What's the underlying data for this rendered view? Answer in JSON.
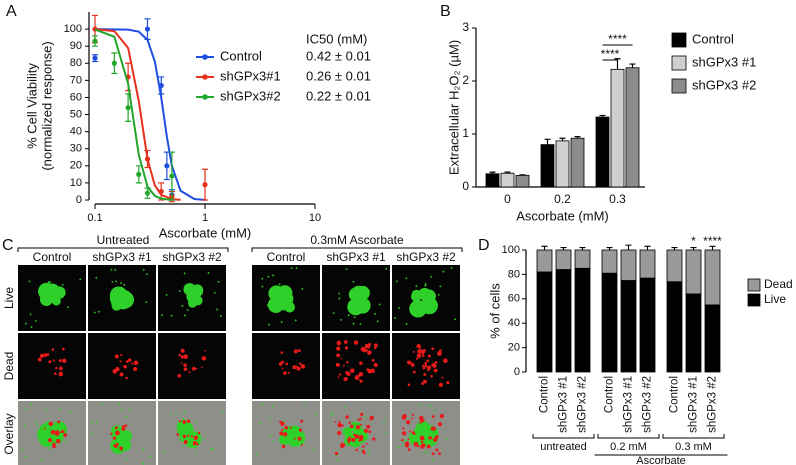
{
  "panel_labels": [
    "A",
    "B",
    "C",
    "D"
  ],
  "chart_data": [
    {
      "type": "scatter",
      "ylabel": [
        "% Cell Viability",
        "(normalized response)"
      ],
      "xlabel": "Ascorbate (mM)",
      "xscale": "log",
      "xlim": [
        0.1,
        10
      ],
      "xticks": [
        0.1,
        1,
        10
      ],
      "ylim": [
        0,
        110
      ],
      "yticks": [
        0,
        10,
        20,
        30,
        40,
        50,
        60,
        70,
        80,
        90,
        100
      ],
      "legend_title": "IC50 (mM)",
      "series": [
        {
          "name": "Control",
          "color": "#1f4fe0",
          "ic50": "0.42 ± 0.01",
          "x": [
            0.1,
            0.3,
            0.4,
            0.45,
            0.5
          ],
          "values": [
            83,
            100,
            67,
            20,
            3
          ],
          "errors": [
            2,
            6,
            5,
            8,
            3
          ],
          "fit": {
            "x": [
              0.1,
              0.2,
              0.25,
              0.3,
              0.35,
              0.4,
              0.45,
              0.5,
              0.6,
              0.8,
              1
            ],
            "values": [
              100,
              99.7,
              98.5,
              93.7,
              81,
              60,
              37,
              20,
              5.4,
              0.6,
              0.1
            ]
          }
        },
        {
          "name": "shGPx3#1",
          "color": "#e8301e",
          "ic50": "0.26 ± 0.01",
          "x": [
            0.1,
            0.2,
            0.3,
            0.4,
            0.5,
            1.0
          ],
          "values": [
            100,
            72,
            24,
            5,
            2,
            9
          ],
          "errors": [
            8,
            8,
            5,
            5,
            3,
            9
          ],
          "fit": {
            "x": [
              0.1,
              0.15,
              0.2,
              0.25,
              0.3,
              0.35,
              0.4,
              0.5,
              0.6
            ],
            "values": [
              100,
              98.8,
              89,
              58,
              24,
              8.5,
              3,
              0.5,
              0.1
            ]
          }
        },
        {
          "name": "shGPx3#2",
          "color": "#21a52b",
          "ic50": "0.22 ± 0.01",
          "x": [
            0.1,
            0.15,
            0.2,
            0.25,
            0.3,
            0.5
          ],
          "values": [
            93,
            80,
            54,
            15,
            4,
            14
          ],
          "errors": [
            3,
            6,
            8,
            5,
            3,
            14
          ],
          "fit": {
            "x": [
              0.1,
              0.15,
              0.2,
              0.25,
              0.3,
              0.35,
              0.4,
              0.5
            ],
            "values": [
              99.8,
              95.5,
              68,
              26.5,
              7.8,
              2.4,
              0.8,
              0.1
            ]
          }
        }
      ]
    },
    {
      "type": "bar",
      "xlabel": "Ascorbate (mM)",
      "ylabel": "Extracellular H₂O₂ (µM)",
      "categories": [
        "0",
        "0.2",
        "0.3"
      ],
      "ylim": [
        0,
        3
      ],
      "yticks": [
        0,
        1,
        2,
        3
      ],
      "annotations": [
        "****",
        "****"
      ],
      "series": [
        {
          "name": "Control",
          "color": "#000000",
          "values": [
            0.25,
            0.8,
            1.32
          ],
          "errors": [
            0.03,
            0.1,
            0.03
          ]
        },
        {
          "name": "shGPx3 #1",
          "color": "#cfcfcf",
          "values": [
            0.26,
            0.87,
            2.22
          ],
          "errors": [
            0.02,
            0.05,
            0.2
          ]
        },
        {
          "name": "shGPx3 #2",
          "color": "#8c8c8c",
          "values": [
            0.22,
            0.92,
            2.25
          ],
          "errors": [
            0.01,
            0.03,
            0.07
          ]
        }
      ]
    },
    {
      "type": "stacked_bar",
      "ylabel": "% of cells",
      "xlabel": "Ascorbate",
      "ylim": [
        0,
        100
      ],
      "yticks": [
        0,
        20,
        40,
        60,
        80,
        100
      ],
      "groups": [
        {
          "label": "untreated",
          "categories": [
            "Control",
            "shGPx3 #1",
            "shGPx3 #2"
          ]
        },
        {
          "label": "0.2 mM",
          "categories": [
            "Control",
            "shGPx3 #1",
            "shGPx3 #2"
          ]
        },
        {
          "label": "0.3 mM",
          "categories": [
            "Control",
            "shGPx3 #1",
            "shGPx3 #2"
          ]
        }
      ],
      "value_annotations": [
        null,
        null,
        null,
        null,
        null,
        null,
        null,
        "*",
        "****"
      ],
      "series": [
        {
          "name": "Live",
          "color": "#000000",
          "values": [
            82,
            84,
            85,
            81,
            75,
            77,
            74,
            64,
            55
          ],
          "errors": [
            2,
            2,
            1,
            3,
            4,
            3,
            2,
            3,
            3
          ]
        },
        {
          "name": "Dead",
          "color": "#9a9a9a",
          "values": [
            18,
            16,
            15,
            19,
            25,
            23,
            26,
            36,
            45
          ],
          "errors": [
            3,
            2,
            2,
            2,
            4,
            3,
            2,
            2,
            3
          ]
        }
      ]
    }
  ],
  "image_panel": {
    "rows": [
      "Live",
      "Dead",
      "Overlay"
    ],
    "groups": [
      {
        "title": "Untreated",
        "columns": [
          "Control",
          "shGPx3 #1",
          "shGPx3 #2"
        ]
      },
      {
        "title": "0.3mM Ascorbate",
        "columns": [
          "Control",
          "shGPx3 #1",
          "shGPx3 #2"
        ]
      }
    ]
  }
}
